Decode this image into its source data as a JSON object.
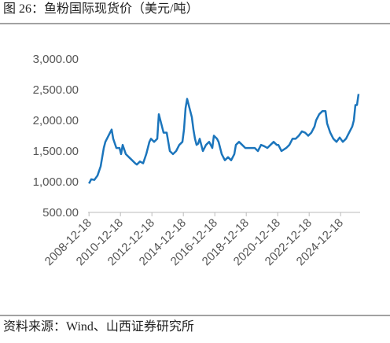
{
  "chart_data": {
    "type": "line",
    "title": "图 26：鱼粉国际现货价（美元/吨）",
    "source": "资料来源：Wind、山西证券研究所",
    "color": "#1b75bc",
    "x": [
      2008.96,
      2009.1,
      2009.3,
      2009.5,
      2009.7,
      2009.9,
      2010.0,
      2010.3,
      2010.4,
      2010.5,
      2010.7,
      2010.9,
      2011.0,
      2011.1,
      2011.3,
      2011.5,
      2011.7,
      2011.9,
      2012.0,
      2012.2,
      2012.4,
      2012.6,
      2012.8,
      2012.9,
      2013.1,
      2013.3,
      2013.4,
      2013.5,
      2013.7,
      2013.9,
      2014.0,
      2014.1,
      2014.3,
      2014.5,
      2014.7,
      2014.9,
      2015.0,
      2015.1,
      2015.2,
      2015.3,
      2015.5,
      2015.6,
      2015.7,
      2015.8,
      2015.9,
      2016.0,
      2016.2,
      2016.4,
      2016.6,
      2016.8,
      2016.9,
      2017.1,
      2017.2,
      2017.4,
      2017.6,
      2017.8,
      2018.0,
      2018.2,
      2018.3,
      2018.5,
      2018.7,
      2018.9,
      2019.2,
      2019.5,
      2019.7,
      2019.9,
      2020.1,
      2020.3,
      2020.5,
      2020.7,
      2020.9,
      2021.0,
      2021.2,
      2021.5,
      2021.7,
      2021.9,
      2022.1,
      2022.3,
      2022.5,
      2022.7,
      2022.9,
      2023.1,
      2023.3,
      2023.4,
      2023.6,
      2023.8,
      2024.0,
      2024.1,
      2024.3,
      2024.5,
      2024.7,
      2024.9,
      2025.1,
      2025.3,
      2025.5,
      2025.7,
      2025.8,
      2025.9,
      2026.0,
      2026.1
    ],
    "values": [
      970,
      1040,
      1030,
      1100,
      1250,
      1550,
      1650,
      1800,
      1850,
      1700,
      1550,
      1550,
      1450,
      1600,
      1450,
      1400,
      1350,
      1300,
      1280,
      1330,
      1300,
      1450,
      1650,
      1700,
      1650,
      1700,
      2100,
      2000,
      1800,
      1800,
      1650,
      1500,
      1450,
      1500,
      1600,
      1650,
      1850,
      2200,
      2350,
      2250,
      2050,
      1850,
      1700,
      1600,
      1620,
      1700,
      1500,
      1600,
      1650,
      1550,
      1750,
      1700,
      1650,
      1450,
      1350,
      1400,
      1350,
      1450,
      1600,
      1650,
      1600,
      1550,
      1550,
      1550,
      1500,
      1600,
      1580,
      1550,
      1600,
      1650,
      1600,
      1600,
      1500,
      1550,
      1600,
      1700,
      1700,
      1750,
      1820,
      1800,
      1750,
      1800,
      1900,
      2000,
      2100,
      2150,
      2150,
      1950,
      1800,
      1700,
      1650,
      1720,
      1650,
      1700,
      1800,
      1900,
      2000,
      2250,
      2250,
      2430
    ],
    "xlim": [
      2008.9,
      2026.2
    ],
    "xticks": [
      {
        "value": 2008.96,
        "label": "2008-12-18"
      },
      {
        "value": 2010.96,
        "label": "2010-12-18"
      },
      {
        "value": 2012.96,
        "label": "2012-12-18"
      },
      {
        "value": 2014.96,
        "label": "2014-12-18"
      },
      {
        "value": 2016.96,
        "label": "2016-12-18"
      },
      {
        "value": 2018.96,
        "label": "2018-12-18"
      },
      {
        "value": 2020.96,
        "label": "2020-12-18"
      },
      {
        "value": 2022.96,
        "label": "2022-12-18"
      },
      {
        "value": 2024.96,
        "label": "2024-12-18"
      }
    ],
    "ylim": [
      500,
      3000
    ],
    "yticks": [
      {
        "value": 500,
        "label": "500.00"
      },
      {
        "value": 1000,
        "label": "1,000.00"
      },
      {
        "value": 1500,
        "label": "1,500.00"
      },
      {
        "value": 2000,
        "label": "2,000.00"
      },
      {
        "value": 2500,
        "label": "2,500.00"
      },
      {
        "value": 3000,
        "label": "3,000.00"
      }
    ]
  }
}
